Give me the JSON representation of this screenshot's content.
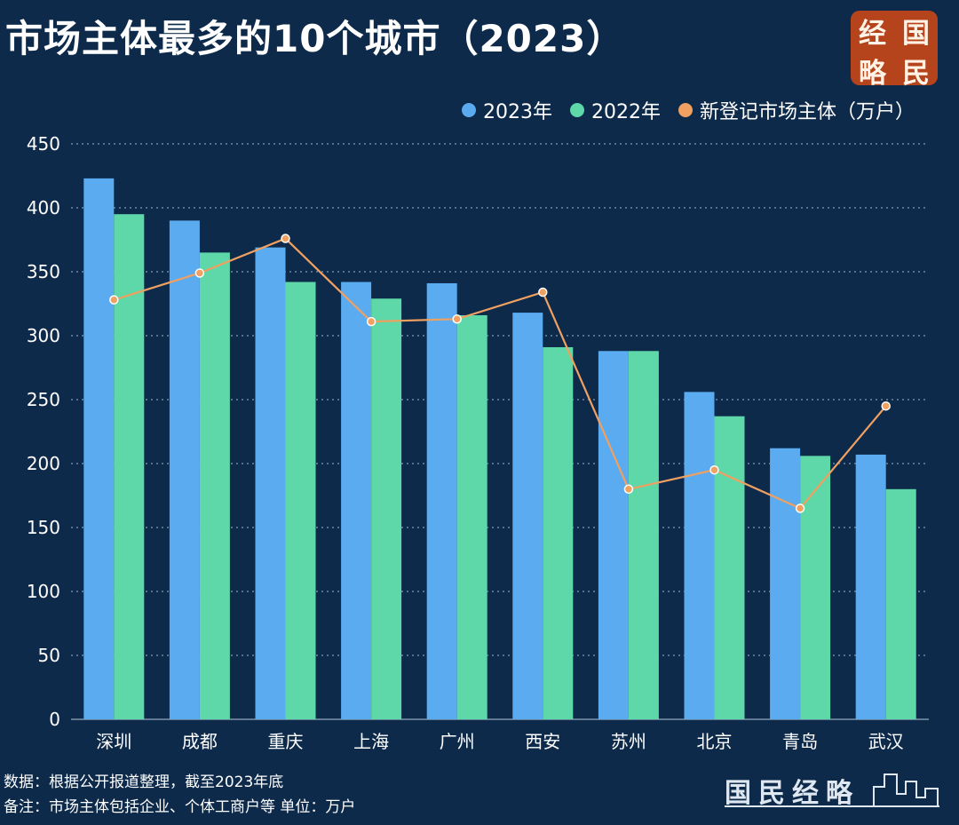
{
  "title": "市场主体最多的10个城市（2023）",
  "brand": {
    "chars": [
      "经",
      "国",
      "略",
      "民"
    ],
    "watermark_text": "国民经略"
  },
  "legend": [
    {
      "label": "2023年",
      "color": "#5aabf0"
    },
    {
      "label": "2022年",
      "color": "#5ed8a8"
    },
    {
      "label": "新登记市场主体（万户）",
      "color": "#f0a060"
    }
  ],
  "footnotes": {
    "source": "数据：根据公开报道整理，截至2023年底",
    "note": "备注：市场主体包括企业、个体工商户等  单位：万户"
  },
  "chart_data": {
    "type": "bar",
    "categories": [
      "深圳",
      "成都",
      "重庆",
      "上海",
      "广州",
      "西安",
      "苏州",
      "北京",
      "青岛",
      "武汉"
    ],
    "series": [
      {
        "name": "2023年",
        "type": "bar",
        "color": "#5aabf0",
        "values": [
          423,
          390,
          369,
          342,
          341,
          318,
          288,
          256,
          212,
          207
        ]
      },
      {
        "name": "2022年",
        "type": "bar",
        "color": "#5ed8a8",
        "values": [
          395,
          365,
          342,
          329,
          316,
          291,
          288,
          237,
          206,
          180
        ]
      },
      {
        "name": "新登记市场主体（万户）",
        "type": "line",
        "color": "#f0a060",
        "values": [
          328,
          349,
          376,
          311,
          313,
          334,
          180,
          195,
          165,
          245
        ]
      }
    ],
    "yticks": [
      0,
      50,
      100,
      150,
      200,
      250,
      300,
      350,
      400,
      450
    ],
    "ylim": [
      0,
      450
    ],
    "grid": true,
    "legend_position": "top-right"
  }
}
